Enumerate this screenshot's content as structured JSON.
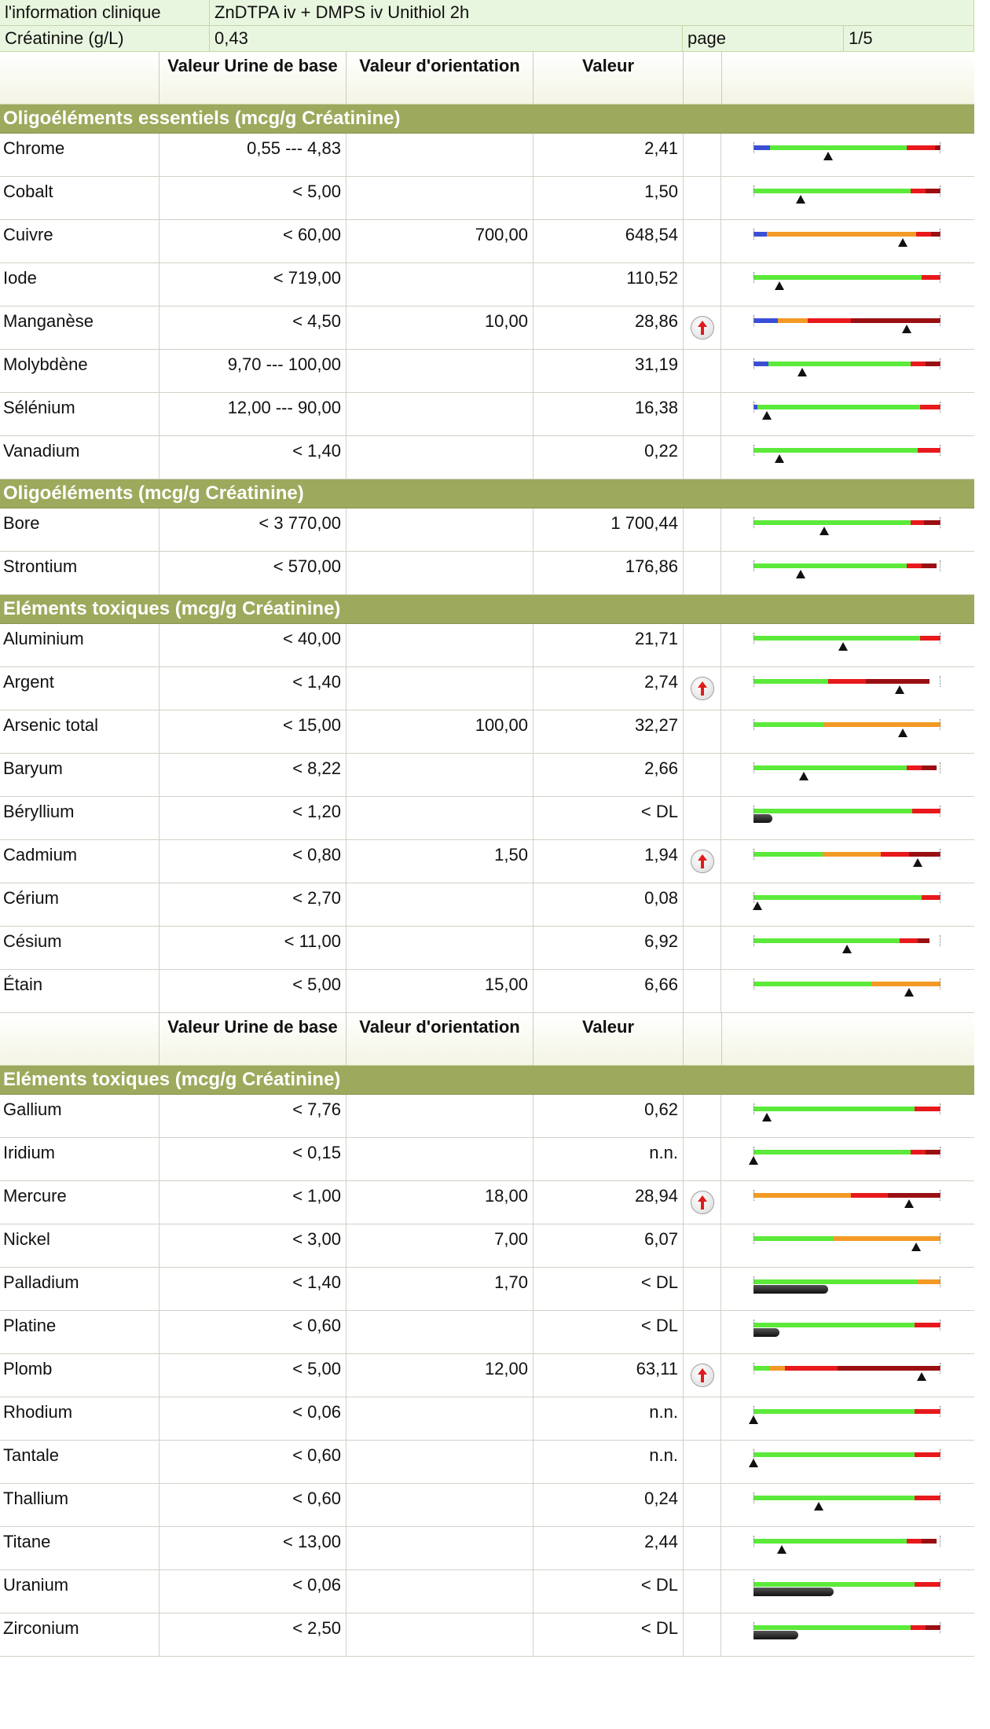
{
  "info": {
    "clinical_label": "l'information clinique",
    "clinical_value": "ZnDTPA iv + DMPS iv Unithiol 2h",
    "creatinine_label": "Créatinine (g/L)",
    "creatinine_value": "0,43",
    "page_label": "page",
    "page_value": "1/5"
  },
  "header": {
    "col_ref": "Valeur Urine de base",
    "col_orient": "Valeur d'orientation",
    "col_val": "Valeur"
  },
  "colors": {
    "section_bg": "#9da95c",
    "blue": "#3a4fd6",
    "green": "#5bea3a",
    "orange": "#f39a24",
    "red": "#e8191c",
    "darkred": "#9a0f12",
    "flag_arrow": "#e01b1b"
  },
  "icons": {
    "flag": "red-up-arrow-icon",
    "marker": "triangle-marker-icon"
  },
  "sections": [
    {
      "title": "Oligoéléments essentiels (mcg/g Créatinine)",
      "header_before": false,
      "rows": [
        {
          "name": "Chrome",
          "ref": "0,55 --- 4,83",
          "orient": "",
          "value": "2,41",
          "flag": false,
          "marker": 0.4,
          "bar": [
            [
              "blue",
              0.09
            ],
            [
              "green",
              0.82
            ],
            [
              "red",
              0.97
            ],
            [
              "darkred",
              1.0
            ]
          ]
        },
        {
          "name": "Cobalt",
          "ref": "< 5,00",
          "orient": "",
          "value": "1,50",
          "flag": false,
          "marker": 0.25,
          "bar": [
            [
              "green",
              0.84
            ],
            [
              "red",
              0.92
            ],
            [
              "darkred",
              1.0
            ]
          ]
        },
        {
          "name": "Cuivre",
          "ref": "< 60,00",
          "orient": "700,00",
          "value": "648,54",
          "flag": false,
          "marker": 0.8,
          "bar": [
            [
              "blue",
              0.07
            ],
            [
              "orange",
              0.87
            ],
            [
              "red",
              0.95
            ],
            [
              "darkred",
              1.0
            ]
          ]
        },
        {
          "name": "Iode",
          "ref": "< 719,00",
          "orient": "",
          "value": "110,52",
          "flag": false,
          "marker": 0.14,
          "bar": [
            [
              "green",
              0.9
            ],
            [
              "red",
              1.0
            ]
          ]
        },
        {
          "name": "Manganèse",
          "ref": "< 4,50",
          "orient": "10,00",
          "value": "28,86",
          "flag": true,
          "marker": 0.82,
          "bar": [
            [
              "blue",
              0.13
            ],
            [
              "orange",
              0.29
            ],
            [
              "red",
              0.52
            ],
            [
              "darkred",
              1.0
            ]
          ]
        },
        {
          "name": "Molybdène",
          "ref": "9,70 --- 100,00",
          "orient": "",
          "value": "31,19",
          "flag": false,
          "marker": 0.26,
          "bar": [
            [
              "blue",
              0.08
            ],
            [
              "green",
              0.84
            ],
            [
              "red",
              0.92
            ],
            [
              "darkred",
              1.0
            ]
          ]
        },
        {
          "name": "Sélénium",
          "ref": "12,00 --- 90,00",
          "orient": "",
          "value": "16,38",
          "flag": false,
          "marker": 0.07,
          "bar": [
            [
              "blue",
              0.02
            ],
            [
              "green",
              0.89
            ],
            [
              "red",
              1.0
            ]
          ]
        },
        {
          "name": "Vanadium",
          "ref": "< 1,40",
          "orient": "",
          "value": "0,22",
          "flag": false,
          "marker": 0.14,
          "bar": [
            [
              "green",
              0.88
            ],
            [
              "red",
              1.0
            ]
          ]
        }
      ]
    },
    {
      "title": "Oligoéléments (mcg/g Créatinine)",
      "header_before": false,
      "rows": [
        {
          "name": "Bore",
          "ref": "< 3 770,00",
          "orient": "",
          "value": "1 700,44",
          "flag": false,
          "marker": 0.38,
          "bar": [
            [
              "green",
              0.84
            ],
            [
              "red",
              0.91
            ],
            [
              "darkred",
              1.0
            ]
          ]
        },
        {
          "name": "Strontium",
          "ref": "< 570,00",
          "orient": "",
          "value": "176,86",
          "flag": false,
          "marker": 0.25,
          "bar": [
            [
              "green",
              0.82
            ],
            [
              "red",
              0.9
            ],
            [
              "darkred",
              0.98
            ]
          ]
        }
      ]
    },
    {
      "title": "Eléments toxiques (mcg/g Créatinine)",
      "header_before": false,
      "rows": [
        {
          "name": "Aluminium",
          "ref": "< 40,00",
          "orient": "",
          "value": "21,71",
          "flag": false,
          "marker": 0.48,
          "bar": [
            [
              "green",
              0.89
            ],
            [
              "red",
              1.0
            ]
          ]
        },
        {
          "name": "Argent",
          "ref": "< 1,40",
          "orient": "",
          "value": "2,74",
          "flag": true,
          "marker": 0.78,
          "bar": [
            [
              "green",
              0.4
            ],
            [
              "red",
              0.6
            ],
            [
              "darkred",
              0.94
            ]
          ]
        },
        {
          "name": "Arsenic total",
          "ref": "< 15,00",
          "orient": "100,00",
          "value": "32,27",
          "flag": false,
          "marker": 0.8,
          "bar": [
            [
              "green",
              0.38
            ],
            [
              "orange",
              1.0
            ]
          ]
        },
        {
          "name": "Baryum",
          "ref": "< 8,22",
          "orient": "",
          "value": "2,66",
          "flag": false,
          "marker": 0.27,
          "bar": [
            [
              "green",
              0.82
            ],
            [
              "red",
              0.9
            ],
            [
              "darkred",
              0.98
            ]
          ]
        },
        {
          "name": "Béryllium",
          "ref": "< 1,20",
          "orient": "",
          "value": "< DL",
          "flag": false,
          "marker": null,
          "dl": 0.1,
          "bar": [
            [
              "green",
              0.85
            ],
            [
              "red",
              1.0
            ]
          ]
        },
        {
          "name": "Cadmium",
          "ref": "< 0,80",
          "orient": "1,50",
          "value": "1,94",
          "flag": true,
          "marker": 0.88,
          "bar": [
            [
              "green",
              0.37
            ],
            [
              "orange",
              0.68
            ],
            [
              "red",
              0.83
            ],
            [
              "darkred",
              1.0
            ]
          ]
        },
        {
          "name": "Cérium",
          "ref": "< 2,70",
          "orient": "",
          "value": "0,08",
          "flag": false,
          "marker": 0.02,
          "bar": [
            [
              "green",
              0.9
            ],
            [
              "red",
              1.0
            ]
          ]
        },
        {
          "name": "Césium",
          "ref": "< 11,00",
          "orient": "",
          "value": "6,92",
          "flag": false,
          "marker": 0.5,
          "bar": [
            [
              "green",
              0.78
            ],
            [
              "red",
              0.88
            ],
            [
              "darkred",
              0.94
            ]
          ]
        },
        {
          "name": "Étain",
          "ref": "< 5,00",
          "orient": "15,00",
          "value": "6,66",
          "flag": false,
          "marker": 0.83,
          "bar": [
            [
              "green",
              0.63
            ],
            [
              "orange",
              1.0
            ]
          ]
        }
      ]
    },
    {
      "title": "Eléments toxiques (mcg/g Créatinine)",
      "header_before": true,
      "rows": [
        {
          "name": "Gallium",
          "ref": "< 7,76",
          "orient": "",
          "value": "0,62",
          "flag": false,
          "marker": 0.07,
          "bar": [
            [
              "green",
              0.86
            ],
            [
              "red",
              1.0
            ]
          ]
        },
        {
          "name": "Iridium",
          "ref": "< 0,15",
          "orient": "",
          "value": "n.n.",
          "flag": false,
          "marker": 0.0,
          "bar": [
            [
              "green",
              0.84
            ],
            [
              "red",
              0.92
            ],
            [
              "darkred",
              1.0
            ]
          ]
        },
        {
          "name": "Mercure",
          "ref": "< 1,00",
          "orient": "18,00",
          "value": "28,94",
          "flag": true,
          "marker": 0.83,
          "bar": [
            [
              "orange",
              0.52
            ],
            [
              "red",
              0.72
            ],
            [
              "darkred",
              1.0
            ]
          ]
        },
        {
          "name": "Nickel",
          "ref": "< 3,00",
          "orient": "7,00",
          "value": "6,07",
          "flag": false,
          "marker": 0.87,
          "bar": [
            [
              "green",
              0.43
            ],
            [
              "orange",
              1.0
            ]
          ]
        },
        {
          "name": "Palladium",
          "ref": "< 1,40",
          "orient": "1,70",
          "value": "< DL",
          "flag": false,
          "marker": null,
          "dl": 0.4,
          "bar": [
            [
              "green",
              0.88
            ],
            [
              "orange",
              1.0
            ]
          ]
        },
        {
          "name": "Platine",
          "ref": "< 0,60",
          "orient": "",
          "value": "< DL",
          "flag": false,
          "marker": null,
          "dl": 0.14,
          "bar": [
            [
              "green",
              0.86
            ],
            [
              "red",
              1.0
            ]
          ]
        },
        {
          "name": "Plomb",
          "ref": "< 5,00",
          "orient": "12,00",
          "value": "63,11",
          "flag": true,
          "marker": 0.9,
          "bar": [
            [
              "green",
              0.09
            ],
            [
              "orange",
              0.17
            ],
            [
              "red",
              0.45
            ],
            [
              "darkred",
              1.0
            ]
          ]
        },
        {
          "name": "Rhodium",
          "ref": "< 0,06",
          "orient": "",
          "value": "n.n.",
          "flag": false,
          "marker": 0.0,
          "bar": [
            [
              "green",
              0.86
            ],
            [
              "red",
              1.0
            ]
          ]
        },
        {
          "name": "Tantale",
          "ref": "< 0,60",
          "orient": "",
          "value": "n.n.",
          "flag": false,
          "marker": 0.0,
          "bar": [
            [
              "green",
              0.86
            ],
            [
              "red",
              1.0
            ]
          ]
        },
        {
          "name": "Thallium",
          "ref": "< 0,60",
          "orient": "",
          "value": "0,24",
          "flag": false,
          "marker": 0.35,
          "bar": [
            [
              "green",
              0.86
            ],
            [
              "red",
              1.0
            ]
          ]
        },
        {
          "name": "Titane",
          "ref": "< 13,00",
          "orient": "",
          "value": "2,44",
          "flag": false,
          "marker": 0.15,
          "bar": [
            [
              "green",
              0.82
            ],
            [
              "red",
              0.9
            ],
            [
              "darkred",
              0.98
            ]
          ]
        },
        {
          "name": "Uranium",
          "ref": "< 0,06",
          "orient": "",
          "value": "< DL",
          "flag": false,
          "marker": null,
          "dl": 0.43,
          "bar": [
            [
              "green",
              0.86
            ],
            [
              "red",
              1.0
            ]
          ]
        },
        {
          "name": "Zirconium",
          "ref": "< 2,50",
          "orient": "",
          "value": "< DL",
          "flag": false,
          "marker": null,
          "dl": 0.24,
          "bar": [
            [
              "green",
              0.84
            ],
            [
              "red",
              0.92
            ],
            [
              "darkred",
              1.0
            ]
          ]
        }
      ]
    }
  ]
}
